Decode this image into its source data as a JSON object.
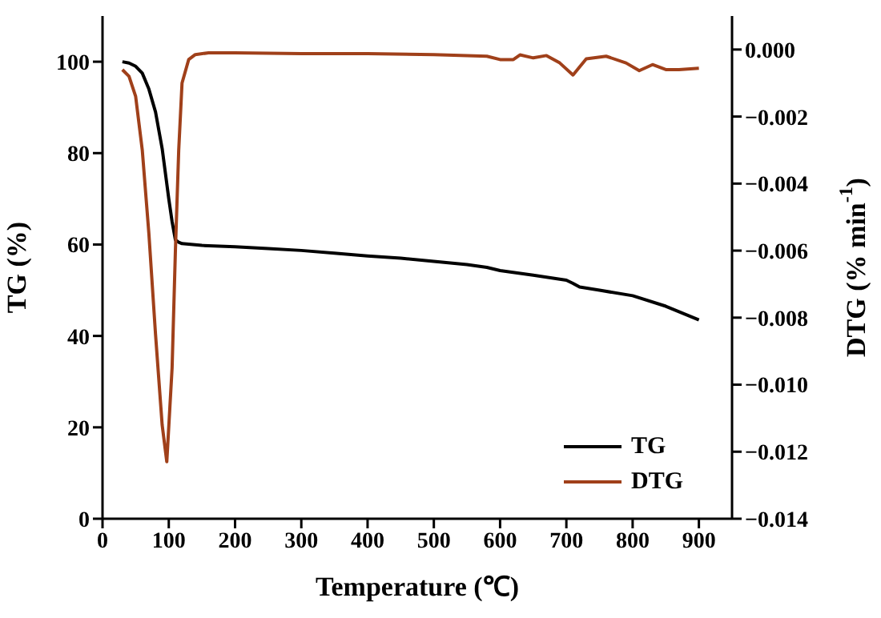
{
  "chart_data": {
    "type": "line",
    "xlabel": "Temperature (℃)",
    "ylabel": "TG (%)",
    "y2label": "DTG (% min$^{-1}$)",
    "xlim": [
      0,
      950
    ],
    "xticks": [
      0,
      100,
      200,
      300,
      400,
      500,
      600,
      700,
      800,
      900
    ],
    "ylim": [
      0,
      110
    ],
    "yticks": [
      0,
      20,
      40,
      60,
      80,
      100
    ],
    "y2lim": [
      -0.014,
      0.001
    ],
    "y2ticks": [
      {
        "value": 0,
        "label": "0.000"
      },
      {
        "value": -0.002,
        "label": "−0.002"
      },
      {
        "value": -0.004,
        "label": "−0.004"
      },
      {
        "value": -0.006,
        "label": "−0.006"
      },
      {
        "value": -0.008,
        "label": "−0.008"
      },
      {
        "value": -0.01,
        "label": "−0.010"
      },
      {
        "value": -0.012,
        "label": "−0.012"
      },
      {
        "value": -0.014,
        "label": "−0.014"
      }
    ],
    "legend": "bottom right",
    "marker": "none",
    "line_style": "solid",
    "series": [
      {
        "name": "TG",
        "color": "#000000",
        "x": [
          30,
          40,
          50,
          60,
          70,
          80,
          90,
          100,
          105,
          110,
          115,
          120,
          150,
          200,
          250,
          300,
          350,
          400,
          450,
          500,
          550,
          580,
          600,
          650,
          700,
          710,
          720,
          750,
          800,
          850,
          900
        ],
        "values": [
          100,
          99.7,
          99,
          97.5,
          94,
          89,
          81,
          70,
          65,
          61,
          60.5,
          60.2,
          59.8,
          59.5,
          59.1,
          58.7,
          58.1,
          57.5,
          57,
          56.3,
          55.6,
          55,
          54.3,
          53.3,
          52.2,
          51.5,
          50.7,
          50,
          48.8,
          46.5,
          43.5
        ]
      },
      {
        "name": "DTG",
        "color": "#a0401a",
        "axis": "y2",
        "x": [
          30,
          40,
          50,
          60,
          70,
          80,
          90,
          97,
          105,
          110,
          115,
          120,
          130,
          140,
          160,
          200,
          300,
          400,
          500,
          580,
          600,
          620,
          630,
          650,
          670,
          690,
          710,
          730,
          760,
          790,
          810,
          830,
          850,
          870,
          900
        ],
        "values": [
          -0.0006,
          -0.0008,
          -0.0014,
          -0.003,
          -0.0055,
          -0.0085,
          -0.0112,
          -0.0123,
          -0.0095,
          -0.006,
          -0.003,
          -0.001,
          -0.0003,
          -0.00015,
          -0.0001,
          -0.0001,
          -0.00012,
          -0.00012,
          -0.00015,
          -0.0002,
          -0.0003,
          -0.0003,
          -0.00016,
          -0.00025,
          -0.00018,
          -0.0004,
          -0.00076,
          -0.00028,
          -0.0002,
          -0.0004,
          -0.00063,
          -0.00045,
          -0.0006,
          -0.0006,
          -0.00056
        ]
      }
    ]
  }
}
